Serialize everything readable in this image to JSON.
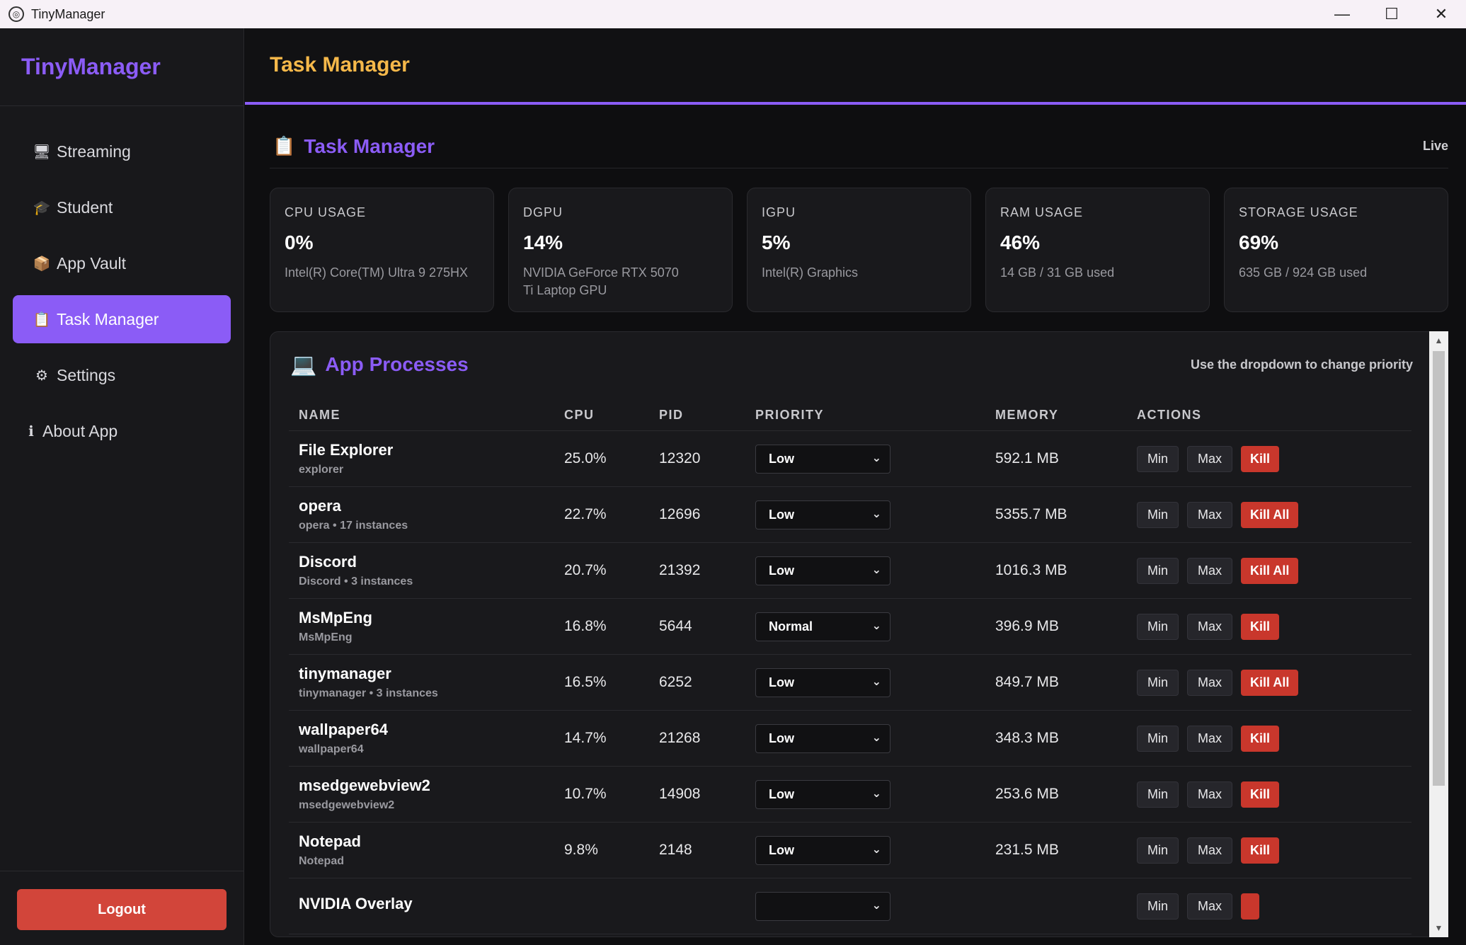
{
  "window": {
    "title": "TinyManager",
    "controls": {
      "minimize": "—",
      "maximize": "☐",
      "close": "✕"
    }
  },
  "sidebar": {
    "brand": "TinyManager",
    "items": [
      {
        "label": "Streaming",
        "icon": "monitor-icon",
        "glyph": "🖥"
      },
      {
        "label": "Student",
        "icon": "graduation-cap-icon",
        "glyph": "🎓"
      },
      {
        "label": "App Vault",
        "icon": "package-icon",
        "glyph": "📦"
      },
      {
        "label": "Task Manager",
        "icon": "clipboard-icon",
        "glyph": "📋",
        "active": true
      },
      {
        "label": "Settings",
        "icon": "gear-icon",
        "glyph": "⚙"
      },
      {
        "label": "About App",
        "icon": "info-icon",
        "glyph": "ℹ"
      }
    ],
    "logout_label": "Logout"
  },
  "header": {
    "title": "Task Manager"
  },
  "section": {
    "title": "Task Manager",
    "icon": "clipboard-icon",
    "glyph": "📋",
    "status": "Live"
  },
  "stats": [
    {
      "label": "CPU USAGE",
      "value": "0%",
      "sub": "Intel(R) Core(TM) Ultra 9 275HX"
    },
    {
      "label": "DGPU",
      "value": "14%",
      "sub": "NVIDIA GeForce RTX 5070 Ti Laptop GPU"
    },
    {
      "label": "IGPU",
      "value": "5%",
      "sub": "Intel(R) Graphics"
    },
    {
      "label": "RAM USAGE",
      "value": "46%",
      "sub": "14 GB / 31 GB used"
    },
    {
      "label": "STORAGE USAGE",
      "value": "69%",
      "sub": "635 GB / 924 GB used"
    }
  ],
  "processes": {
    "title": "App Processes",
    "icon": "computer-icon",
    "glyph": "💻",
    "hint": "Use the dropdown to change priority",
    "columns": [
      "NAME",
      "CPU",
      "PID",
      "PRIORITY",
      "MEMORY",
      "ACTIONS"
    ],
    "buttons": {
      "min": "Min",
      "max": "Max"
    },
    "rows": [
      {
        "name": "File Explorer",
        "sub": "explorer",
        "cpu": "25.0%",
        "pid": "12320",
        "priority": "Low",
        "memory": "592.1 MB",
        "kill": "Kill"
      },
      {
        "name": "opera",
        "sub": "opera • 17 instances",
        "cpu": "22.7%",
        "pid": "12696",
        "priority": "Low",
        "memory": "5355.7 MB",
        "kill": "Kill All"
      },
      {
        "name": "Discord",
        "sub": "Discord • 3 instances",
        "cpu": "20.7%",
        "pid": "21392",
        "priority": "Low",
        "memory": "1016.3 MB",
        "kill": "Kill All"
      },
      {
        "name": "MsMpEng",
        "sub": "MsMpEng",
        "cpu": "16.8%",
        "pid": "5644",
        "priority": "Normal",
        "memory": "396.9 MB",
        "kill": "Kill"
      },
      {
        "name": "tinymanager",
        "sub": "tinymanager • 3 instances",
        "cpu": "16.5%",
        "pid": "6252",
        "priority": "Low",
        "memory": "849.7 MB",
        "kill": "Kill All"
      },
      {
        "name": "wallpaper64",
        "sub": "wallpaper64",
        "cpu": "14.7%",
        "pid": "21268",
        "priority": "Low",
        "memory": "348.3 MB",
        "kill": "Kill"
      },
      {
        "name": "msedgewebview2",
        "sub": "msedgewebview2",
        "cpu": "10.7%",
        "pid": "14908",
        "priority": "Low",
        "memory": "253.6 MB",
        "kill": "Kill"
      },
      {
        "name": "Notepad",
        "sub": "Notepad",
        "cpu": "9.8%",
        "pid": "2148",
        "priority": "Low",
        "memory": "231.5 MB",
        "kill": "Kill"
      },
      {
        "name": "NVIDIA Overlay",
        "sub": "",
        "cpu": "",
        "pid": "",
        "priority": "",
        "memory": "",
        "kill": ""
      }
    ]
  },
  "colors": {
    "accent": "#8b5cf6",
    "header_title": "#f5b84a",
    "kill": "#c9372c",
    "logout": "#d2453a"
  }
}
